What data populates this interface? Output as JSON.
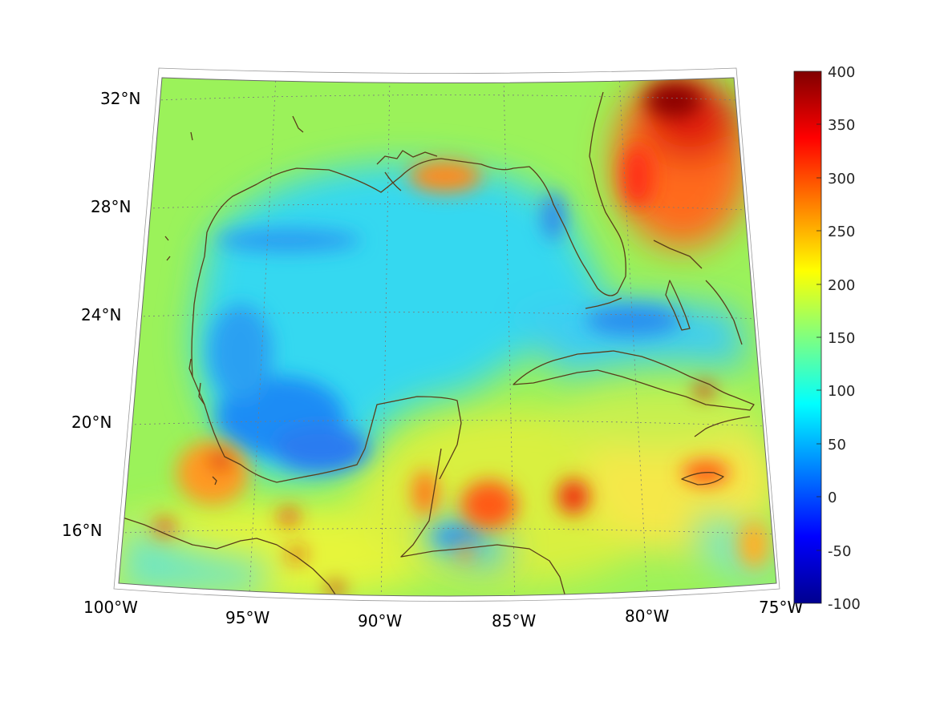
{
  "map": {
    "projection": "conic",
    "lon_range": [
      -100,
      -75
    ],
    "lat_range": [
      14,
      33
    ],
    "graticule": "dotted",
    "coastline_color": "#5a3d1a",
    "lon_labels": [
      "100°W",
      "95°W",
      "90°W",
      "85°W",
      "80°W",
      "75°W"
    ],
    "lat_labels": [
      "32°N",
      "28°N",
      "24°N",
      "20°N",
      "16°N"
    ]
  },
  "colorbar": {
    "colormap": "jet",
    "range": [
      -100,
      400
    ],
    "tick_labels": [
      "400",
      "350",
      "300",
      "250",
      "200",
      "150",
      "100",
      "50",
      "0",
      "-50",
      "-100"
    ]
  },
  "colors": {
    "low": "#00008f",
    "mid": "#00ffff",
    "high": "#800000",
    "background_field": "#9bf25a"
  }
}
